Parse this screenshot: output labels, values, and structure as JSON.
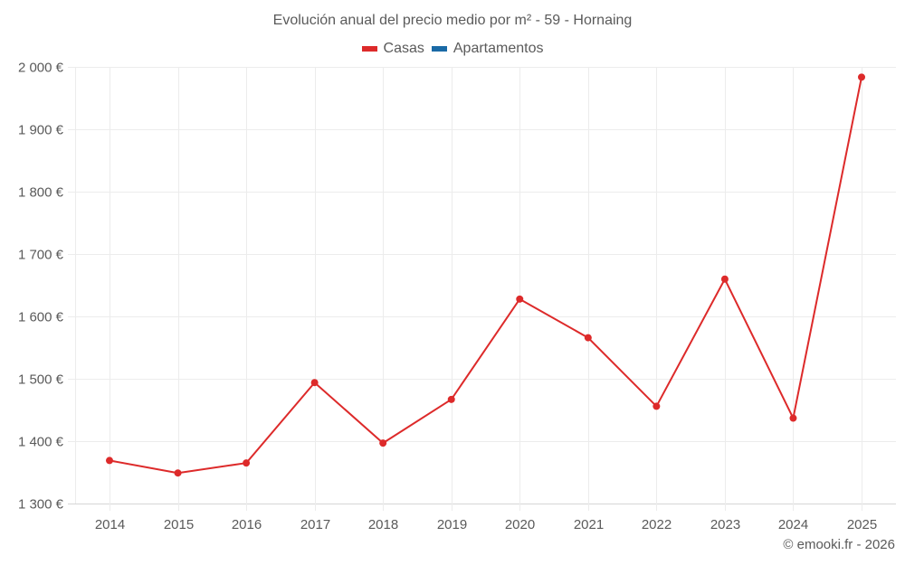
{
  "chart_data": {
    "type": "line",
    "title": "Evolución anual del precio medio por m² - 59 - Hornaing",
    "xlabel": "",
    "ylabel": "",
    "categories": [
      "2014",
      "2015",
      "2016",
      "2017",
      "2018",
      "2019",
      "2020",
      "2021",
      "2022",
      "2023",
      "2024",
      "2025"
    ],
    "series": [
      {
        "name": "Casas",
        "color": "#dd2a2a",
        "values": [
          1369,
          1349,
          1365,
          1494,
          1397,
          1467,
          1628,
          1566,
          1456,
          1660,
          1437,
          1984
        ]
      },
      {
        "name": "Apartamentos",
        "color": "#1a6aa6",
        "values": []
      }
    ],
    "ylim": [
      1300,
      2000
    ],
    "yticks": [
      1300,
      1400,
      1500,
      1600,
      1700,
      1800,
      1900,
      2000
    ],
    "ytick_labels": [
      "1 300 €",
      "1 400 €",
      "1 500 €",
      "1 600 €",
      "1 700 €",
      "1 800 €",
      "1 900 €",
      "2 000 €"
    ],
    "grid": true,
    "legend_position": "top"
  },
  "legend": {
    "items": [
      {
        "label": "Casas",
        "color": "#dd2a2a"
      },
      {
        "label": "Apartamentos",
        "color": "#1a6aa6"
      }
    ]
  },
  "credit": "© emooki.fr - 2026"
}
